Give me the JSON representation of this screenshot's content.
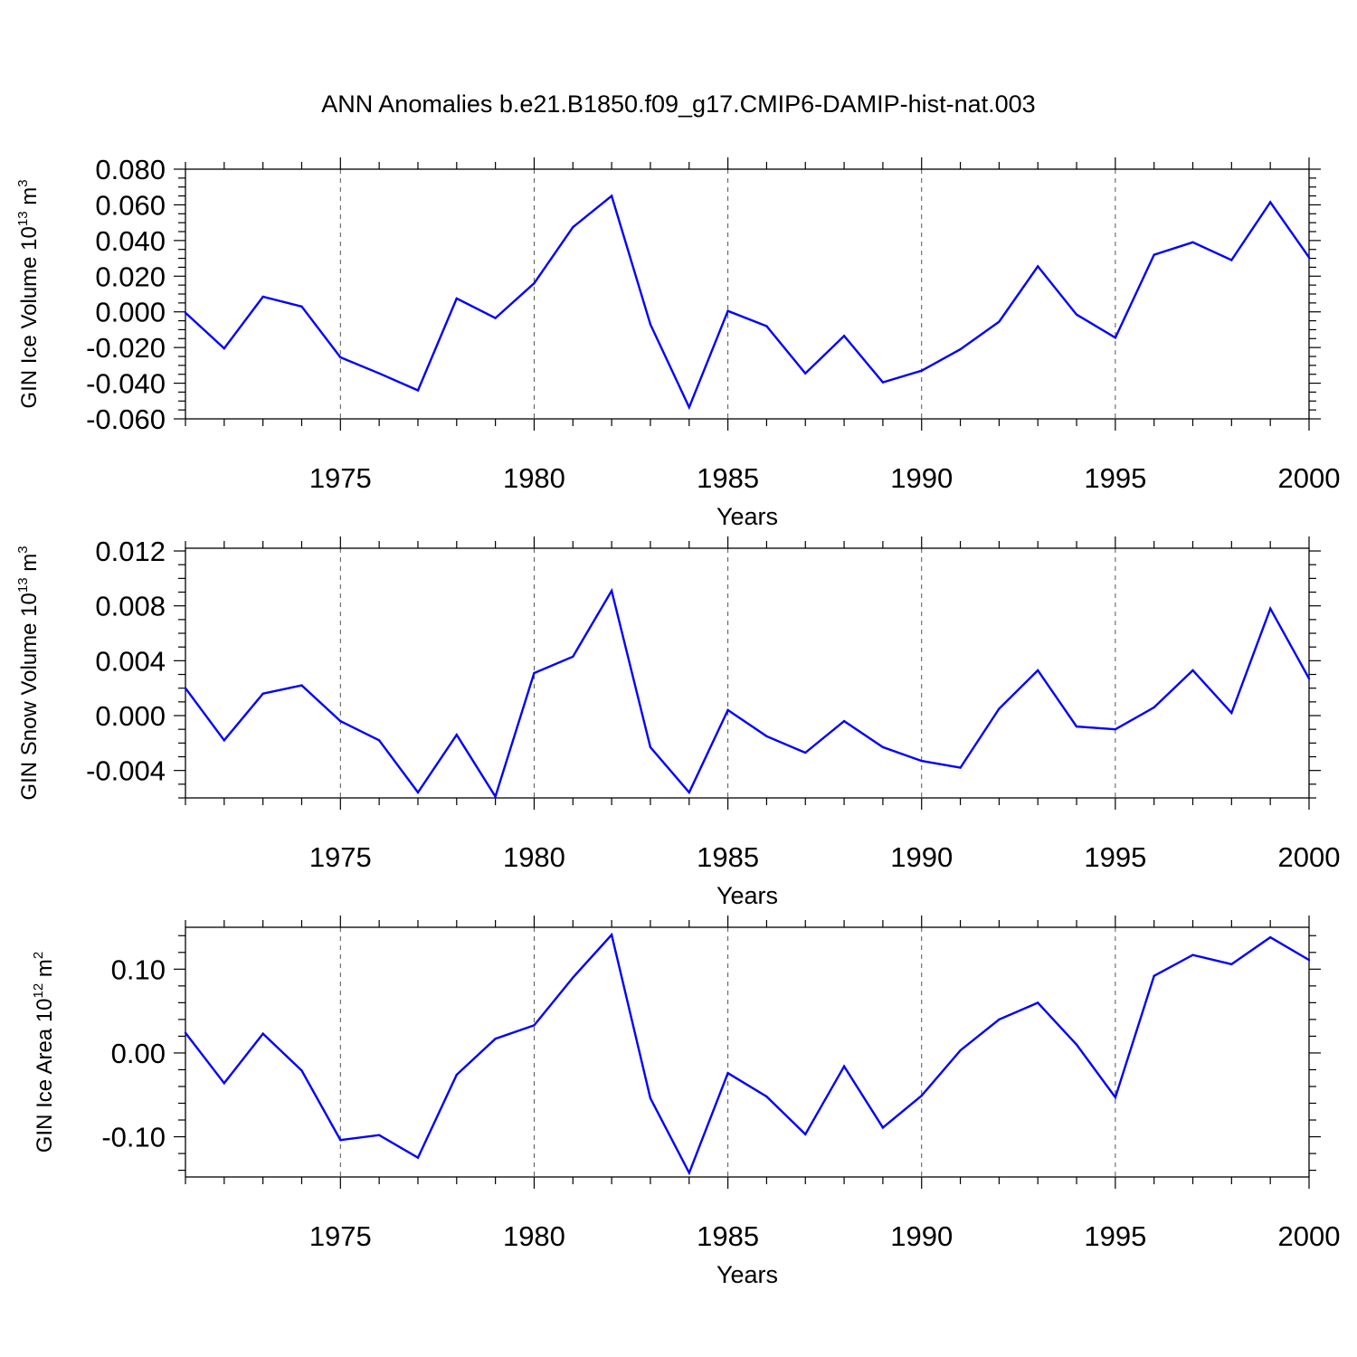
{
  "title": "ANN Anomalies b.e21.B1850.f09_g17.CMIP6-DAMIP-hist-nat.003",
  "colors": {
    "series": "#0000ff",
    "frame": "#000000",
    "grid": "#555555"
  },
  "chart_data": [
    {
      "type": "line",
      "name": "ice-volume",
      "ylabel": {
        "text": "GIN Ice Volume 10",
        "exp": "13",
        "unit": " m",
        "unit_exp": "3"
      },
      "xlabel": "Years",
      "xlim": [
        1971,
        2000
      ],
      "ylim": [
        -0.06,
        0.08
      ],
      "yticks": [
        -0.06,
        -0.04,
        -0.02,
        0.0,
        0.02,
        0.04,
        0.06,
        0.08
      ],
      "ytick_labels": [
        "-0.060",
        "-0.040",
        "-0.020",
        "0.000",
        "0.020",
        "0.040",
        "0.060",
        "0.080"
      ],
      "yminor_step": 0.005,
      "xticks": [
        1975,
        1980,
        1985,
        1990,
        1995,
        2000
      ],
      "xtick_labels": [
        "1975",
        "1980",
        "1985",
        "1990",
        "1995",
        "2000"
      ],
      "grid_x": [
        1975,
        1980,
        1985,
        1990,
        1995
      ],
      "x": [
        1971,
        1972,
        1973,
        1974,
        1975,
        1976,
        1977,
        1978,
        1979,
        1980,
        1981,
        1982,
        1983,
        1984,
        1985,
        1986,
        1987,
        1988,
        1989,
        1990,
        1991,
        1992,
        1993,
        1994,
        1995,
        1996,
        1997,
        1998,
        1999,
        2000
      ],
      "values": [
        -0.0005,
        -0.0205,
        0.0085,
        0.003,
        -0.0255,
        -0.0345,
        -0.044,
        0.0075,
        -0.0035,
        0.016,
        0.0475,
        0.065,
        -0.007,
        -0.0535,
        0.0005,
        -0.008,
        -0.0345,
        -0.0135,
        -0.0395,
        -0.033,
        -0.021,
        -0.0055,
        0.0255,
        -0.0015,
        -0.0145,
        0.032,
        0.039,
        0.029,
        0.0615,
        0.0305
      ]
    },
    {
      "type": "line",
      "name": "snow-volume",
      "ylabel": {
        "text": "GIN Snow Volume 10",
        "exp": "13",
        "unit": " m",
        "unit_exp": "3"
      },
      "xlabel": "Years",
      "xlim": [
        1971,
        2000
      ],
      "ylim": [
        -0.006,
        0.0122
      ],
      "yticks": [
        -0.004,
        0.0,
        0.004,
        0.008,
        0.012
      ],
      "ytick_labels": [
        "-0.004",
        "0.000",
        "0.004",
        "0.008",
        "0.012"
      ],
      "yminor_step": 0.001,
      "xticks": [
        1975,
        1980,
        1985,
        1990,
        1995,
        2000
      ],
      "xtick_labels": [
        "1975",
        "1980",
        "1985",
        "1990",
        "1995",
        "2000"
      ],
      "grid_x": [
        1975,
        1980,
        1985,
        1990,
        1995
      ],
      "x": [
        1971,
        1972,
        1973,
        1974,
        1975,
        1976,
        1977,
        1978,
        1979,
        1980,
        1981,
        1982,
        1983,
        1984,
        1985,
        1986,
        1987,
        1988,
        1989,
        1990,
        1991,
        1992,
        1993,
        1994,
        1995,
        1996,
        1997,
        1998,
        1999,
        2000
      ],
      "values": [
        0.002,
        -0.0018,
        0.0016,
        0.0022,
        -0.0004,
        -0.0018,
        -0.0056,
        -0.0014,
        -0.0059,
        0.0031,
        0.0043,
        0.0091,
        -0.0023,
        -0.0056,
        0.0004,
        -0.0015,
        -0.0027,
        -0.0004,
        -0.0023,
        -0.0033,
        -0.0038,
        0.0005,
        0.0033,
        -0.0008,
        -0.001,
        0.0006,
        0.0033,
        0.0002,
        0.0078,
        0.0027
      ]
    },
    {
      "type": "line",
      "name": "ice-area",
      "ylabel": {
        "text": "GIN Ice Area 10",
        "exp": "12",
        "unit": " m",
        "unit_exp": "2"
      },
      "xlabel": "Years",
      "xlim": [
        1971,
        2000
      ],
      "ylim": [
        -0.148,
        0.15
      ],
      "yticks": [
        -0.1,
        0.0,
        0.1
      ],
      "ytick_labels": [
        "-0.10",
        "0.00",
        "0.10"
      ],
      "yminor_step": 0.02,
      "xticks": [
        1975,
        1980,
        1985,
        1990,
        1995,
        2000
      ],
      "xtick_labels": [
        "1975",
        "1980",
        "1985",
        "1990",
        "1995",
        "2000"
      ],
      "grid_x": [
        1975,
        1980,
        1985,
        1990,
        1995
      ],
      "x": [
        1971,
        1972,
        1973,
        1974,
        1975,
        1976,
        1977,
        1978,
        1979,
        1980,
        1981,
        1982,
        1983,
        1984,
        1985,
        1986,
        1987,
        1988,
        1989,
        1990,
        1991,
        1992,
        1993,
        1994,
        1995,
        1996,
        1997,
        1998,
        1999,
        2000
      ],
      "values": [
        0.024,
        -0.036,
        0.023,
        -0.021,
        -0.104,
        -0.098,
        -0.125,
        -0.026,
        0.017,
        0.033,
        0.09,
        0.141,
        -0.054,
        -0.143,
        -0.024,
        -0.052,
        -0.097,
        -0.016,
        -0.089,
        -0.051,
        0.003,
        0.04,
        0.06,
        0.01,
        -0.053,
        0.092,
        0.117,
        0.106,
        0.138,
        0.111
      ]
    }
  ]
}
